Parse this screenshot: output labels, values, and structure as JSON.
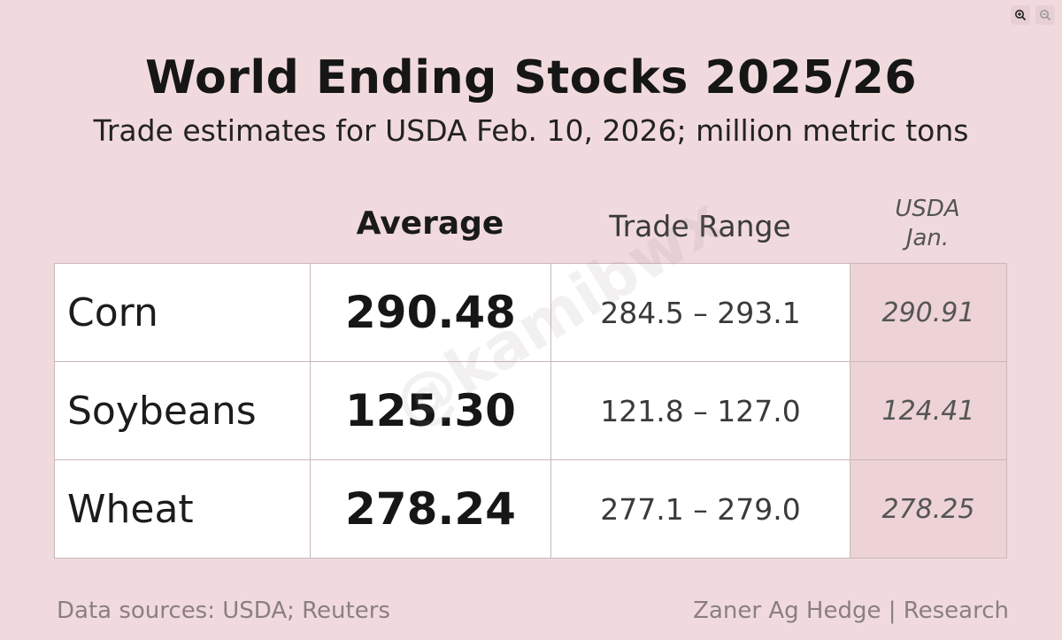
{
  "title": "World Ending Stocks 2025/26",
  "subtitle": "Trade estimates for USDA Feb. 10, 2026; million metric tons",
  "toolbar": {
    "zoom_in_icon": "zoom-in-icon",
    "zoom_out_icon": "zoom-out-icon"
  },
  "columns": {
    "average": "Average",
    "trade_range": "Trade Range",
    "usda_line1": "USDA",
    "usda_line2": "Jan."
  },
  "rows": [
    {
      "commodity": "Corn",
      "average": "290.48",
      "range": "284.5 – 293.1",
      "usda_jan": "290.91"
    },
    {
      "commodity": "Soybeans",
      "average": "125.30",
      "range": "121.8 – 127.0",
      "usda_jan": "124.41"
    },
    {
      "commodity": "Wheat",
      "average": "278.24",
      "range": "277.1 – 279.0",
      "usda_jan": "278.25"
    }
  ],
  "watermark": "@kamibwx",
  "footer": {
    "left": "Data sources: USDA; Reuters",
    "right": "Zaner Ag Hedge | Research"
  },
  "colors": {
    "background": "#f1dadd",
    "usda_cell": "#edd2d6",
    "table_cell": "#ffffff"
  },
  "chart_data": {
    "type": "table",
    "title": "World Ending Stocks 2025/26",
    "subtitle": "Trade estimates for USDA Feb. 10, 2026; million metric tons",
    "columns": [
      "",
      "Average",
      "Trade Range",
      "USDA Jan."
    ],
    "rows": [
      [
        "Corn",
        290.48,
        "284.5 – 293.1",
        290.91
      ],
      [
        "Soybeans",
        125.3,
        "121.8 – 127.0",
        124.41
      ],
      [
        "Wheat",
        278.24,
        "277.1 – 279.0",
        278.25
      ]
    ]
  }
}
